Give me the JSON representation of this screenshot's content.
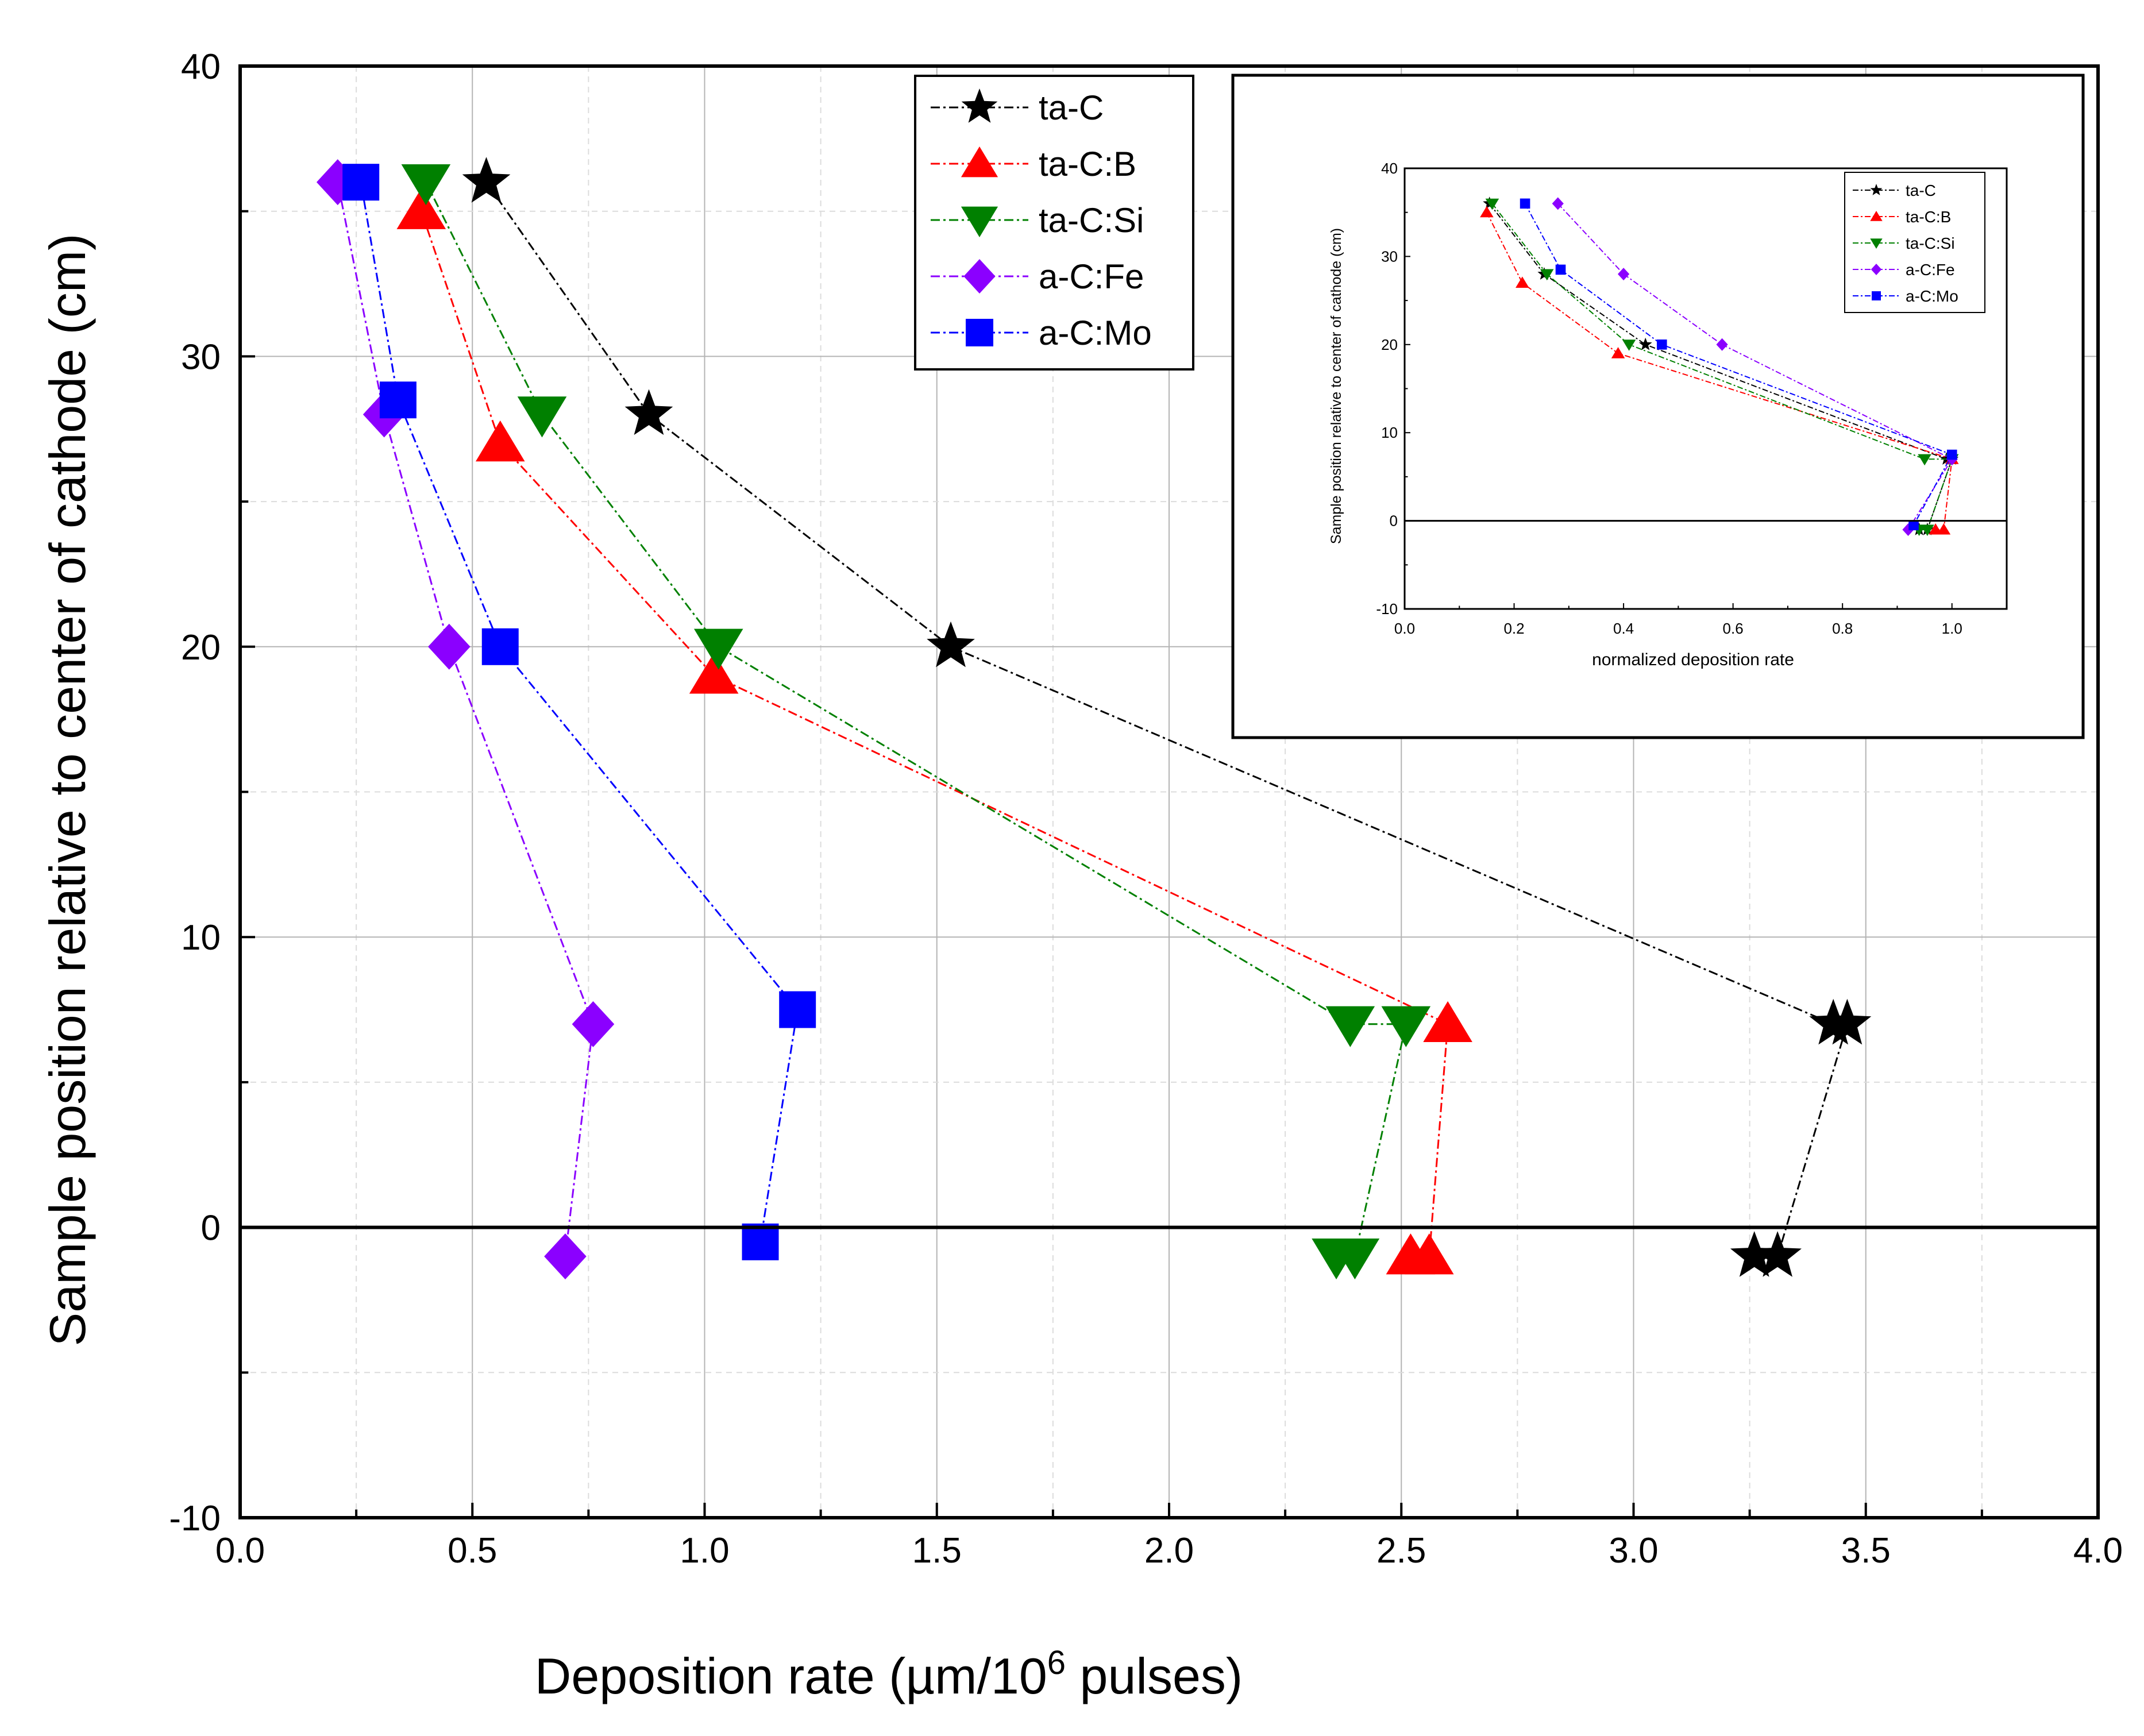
{
  "chart_data": [
    {
      "type": "scatter",
      "title": "",
      "xlabel_prefix": "Deposition rate (",
      "xlabel_unit": "µm/10",
      "xlabel_sup": "6",
      "xlabel_suffix": " pulses)",
      "ylabel": "Sample position relative to center of cathode (cm)",
      "xlim": [
        0.0,
        4.0
      ],
      "ylim": [
        -10,
        40
      ],
      "xticks": [
        "0.0",
        "0.5",
        "1.0",
        "1.5",
        "2.0",
        "2.5",
        "3.0",
        "3.5",
        "4.0"
      ],
      "yticks": [
        "-10",
        "0",
        "10",
        "20",
        "30",
        "40"
      ],
      "grid": true,
      "zero_line": true,
      "legend_position": "top-center",
      "series": [
        {
          "name": "ta-C",
          "color": "#000000",
          "marker": "star",
          "points": [
            [
              0.53,
              36
            ],
            [
              0.88,
              28
            ],
            [
              1.53,
              20
            ],
            [
              3.43,
              7
            ],
            [
              3.46,
              7
            ],
            [
              3.31,
              -1
            ],
            [
              3.26,
              -1
            ]
          ]
        },
        {
          "name": "ta-C:B",
          "color": "#ff0000",
          "marker": "triangle-up",
          "points": [
            [
              0.39,
              35
            ],
            [
              0.56,
              27
            ],
            [
              1.02,
              19
            ],
            [
              2.6,
              7
            ],
            [
              2.56,
              -1
            ],
            [
              2.52,
              -1
            ]
          ]
        },
        {
          "name": "ta-C:Si",
          "color": "#008000",
          "marker": "triangle-down",
          "points": [
            [
              0.4,
              36
            ],
            [
              0.65,
              28
            ],
            [
              1.03,
              20
            ],
            [
              2.39,
              7
            ],
            [
              2.51,
              7
            ],
            [
              2.4,
              -1
            ],
            [
              2.36,
              -1
            ]
          ]
        },
        {
          "name": "a-C:Fe",
          "color": "#8b00ff",
          "marker": "diamond",
          "points": [
            [
              0.21,
              36
            ],
            [
              0.31,
              28
            ],
            [
              0.45,
              20
            ],
            [
              0.76,
              7
            ],
            [
              0.7,
              -1
            ]
          ]
        },
        {
          "name": "a-C:Mo",
          "color": "#0000ff",
          "marker": "square",
          "points": [
            [
              0.26,
              36
            ],
            [
              0.34,
              28.5
            ],
            [
              0.56,
              20
            ],
            [
              1.2,
              7.5
            ],
            [
              1.12,
              -0.5
            ]
          ]
        }
      ]
    },
    {
      "type": "scatter",
      "title": "",
      "xlabel": "normalized deposition rate",
      "ylabel": "Sample position relative to center of cathode (cm)",
      "xlim": [
        0.0,
        1.1
      ],
      "ylim": [
        -10,
        40
      ],
      "xticks": [
        "0.0",
        "0.2",
        "0.4",
        "0.6",
        "0.8",
        "1.0"
      ],
      "yticks": [
        "-10",
        "0",
        "10",
        "20",
        "30",
        "40"
      ],
      "grid": false,
      "zero_line": true,
      "legend_position": "top-right",
      "series": [
        {
          "name": "ta-C",
          "color": "#000000",
          "marker": "star",
          "points": [
            [
              0.155,
              36
            ],
            [
              0.255,
              28
            ],
            [
              0.44,
              20
            ],
            [
              0.99,
              7
            ],
            [
              1.0,
              7
            ],
            [
              0.955,
              -1
            ],
            [
              0.94,
              -1
            ]
          ]
        },
        {
          "name": "ta-C:B",
          "color": "#ff0000",
          "marker": "triangle-up",
          "points": [
            [
              0.15,
              35
            ],
            [
              0.215,
              27
            ],
            [
              0.39,
              19
            ],
            [
              1.0,
              7
            ],
            [
              0.985,
              -1
            ],
            [
              0.97,
              -1
            ]
          ]
        },
        {
          "name": "ta-C:Si",
          "color": "#008000",
          "marker": "triangle-down",
          "points": [
            [
              0.16,
              36
            ],
            [
              0.26,
              28
            ],
            [
              0.41,
              20
            ],
            [
              0.95,
              7
            ],
            [
              1.0,
              7
            ],
            [
              0.955,
              -1
            ],
            [
              0.94,
              -1
            ]
          ]
        },
        {
          "name": "a-C:Fe",
          "color": "#8b00ff",
          "marker": "diamond",
          "points": [
            [
              0.28,
              36
            ],
            [
              0.4,
              28
            ],
            [
              0.58,
              20
            ],
            [
              1.0,
              7
            ],
            [
              0.92,
              -1
            ]
          ]
        },
        {
          "name": "a-C:Mo",
          "color": "#0000ff",
          "marker": "square",
          "points": [
            [
              0.22,
              36
            ],
            [
              0.285,
              28.5
            ],
            [
              0.47,
              20
            ],
            [
              1.0,
              7.5
            ],
            [
              0.93,
              -0.5
            ]
          ]
        }
      ]
    }
  ]
}
